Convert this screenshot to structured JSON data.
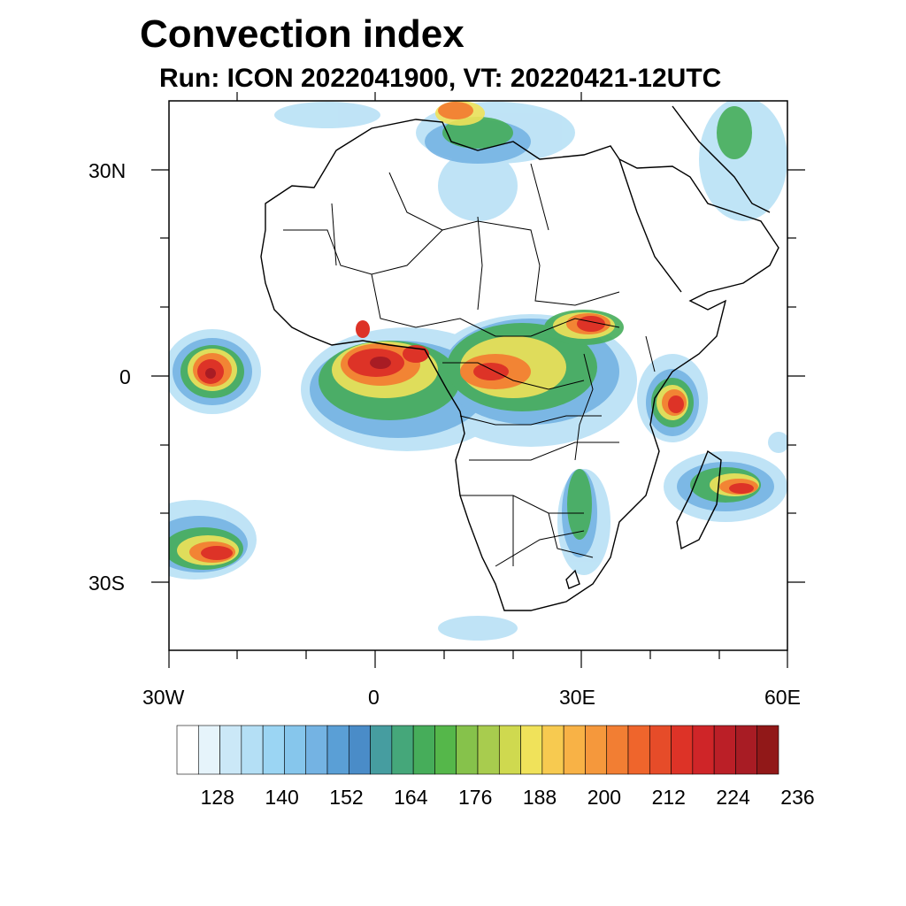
{
  "title": "Convection index",
  "subtitle": "Run: ICON 2022041900,  VT: 20220421-12UTC",
  "axes": {
    "lat_labels": [
      "30N",
      "0",
      "30S"
    ],
    "lon_labels": [
      "30W",
      "0",
      "30E",
      "60E"
    ]
  },
  "colorbar": {
    "colors": [
      "#ffffff",
      "#e6f4fb",
      "#cbe8f7",
      "#b4dff5",
      "#9bd5f3",
      "#86c6ec",
      "#74b3e3",
      "#5a9fd6",
      "#4a8cc8",
      "#469da0",
      "#45a77a",
      "#46ad5a",
      "#55b74a",
      "#86c24b",
      "#a8cc4e",
      "#cfd94f",
      "#f0e25a",
      "#f7ca50",
      "#f8b246",
      "#f5983c",
      "#f27e33",
      "#ef652c",
      "#e64c29",
      "#dd3327",
      "#cf2528",
      "#bb1f27",
      "#a81c24",
      "#911818"
    ],
    "tick_labels": [
      "128",
      "140",
      "152",
      "164",
      "176",
      "188",
      "200",
      "212",
      "224",
      "236"
    ]
  }
}
